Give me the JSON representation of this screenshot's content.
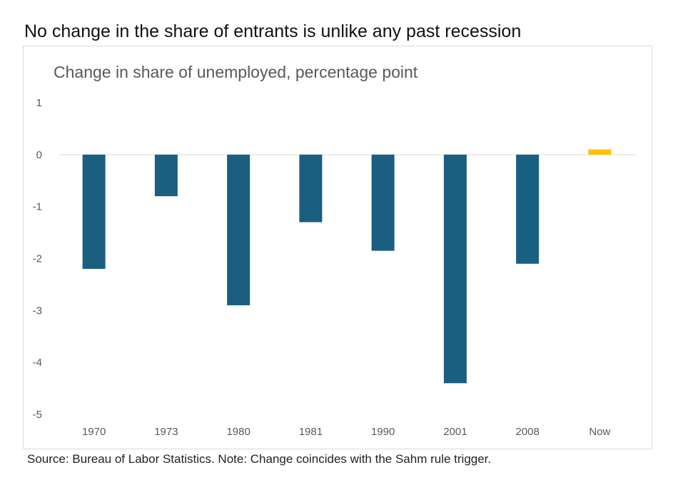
{
  "headline": "No change in the share of entrants is unlike any past recession",
  "source_note": "Source: Bureau of Labor Statistics. Note: Change coincides with the Sahm rule trigger.",
  "chart_data": {
    "type": "bar",
    "title": "Change in share of unemployed, percentage point",
    "xlabel": "",
    "ylabel": "",
    "categories": [
      "1970",
      "1973",
      "1980",
      "1981",
      "1990",
      "2001",
      "2008",
      "Now"
    ],
    "values": [
      -2.2,
      -0.8,
      -2.9,
      -1.3,
      -1.85,
      -4.4,
      -2.1,
      0.1
    ],
    "ylim": [
      -5,
      1
    ],
    "yticks": [
      "1",
      "0",
      "-1",
      "-2",
      "-3",
      "-4",
      "-5"
    ],
    "grid": false,
    "legend": "none",
    "colors": {
      "default": "#1a5e80",
      "highlight": "#ffc000",
      "zero_line": "#d9d9d9"
    },
    "highlight_category": "Now"
  }
}
